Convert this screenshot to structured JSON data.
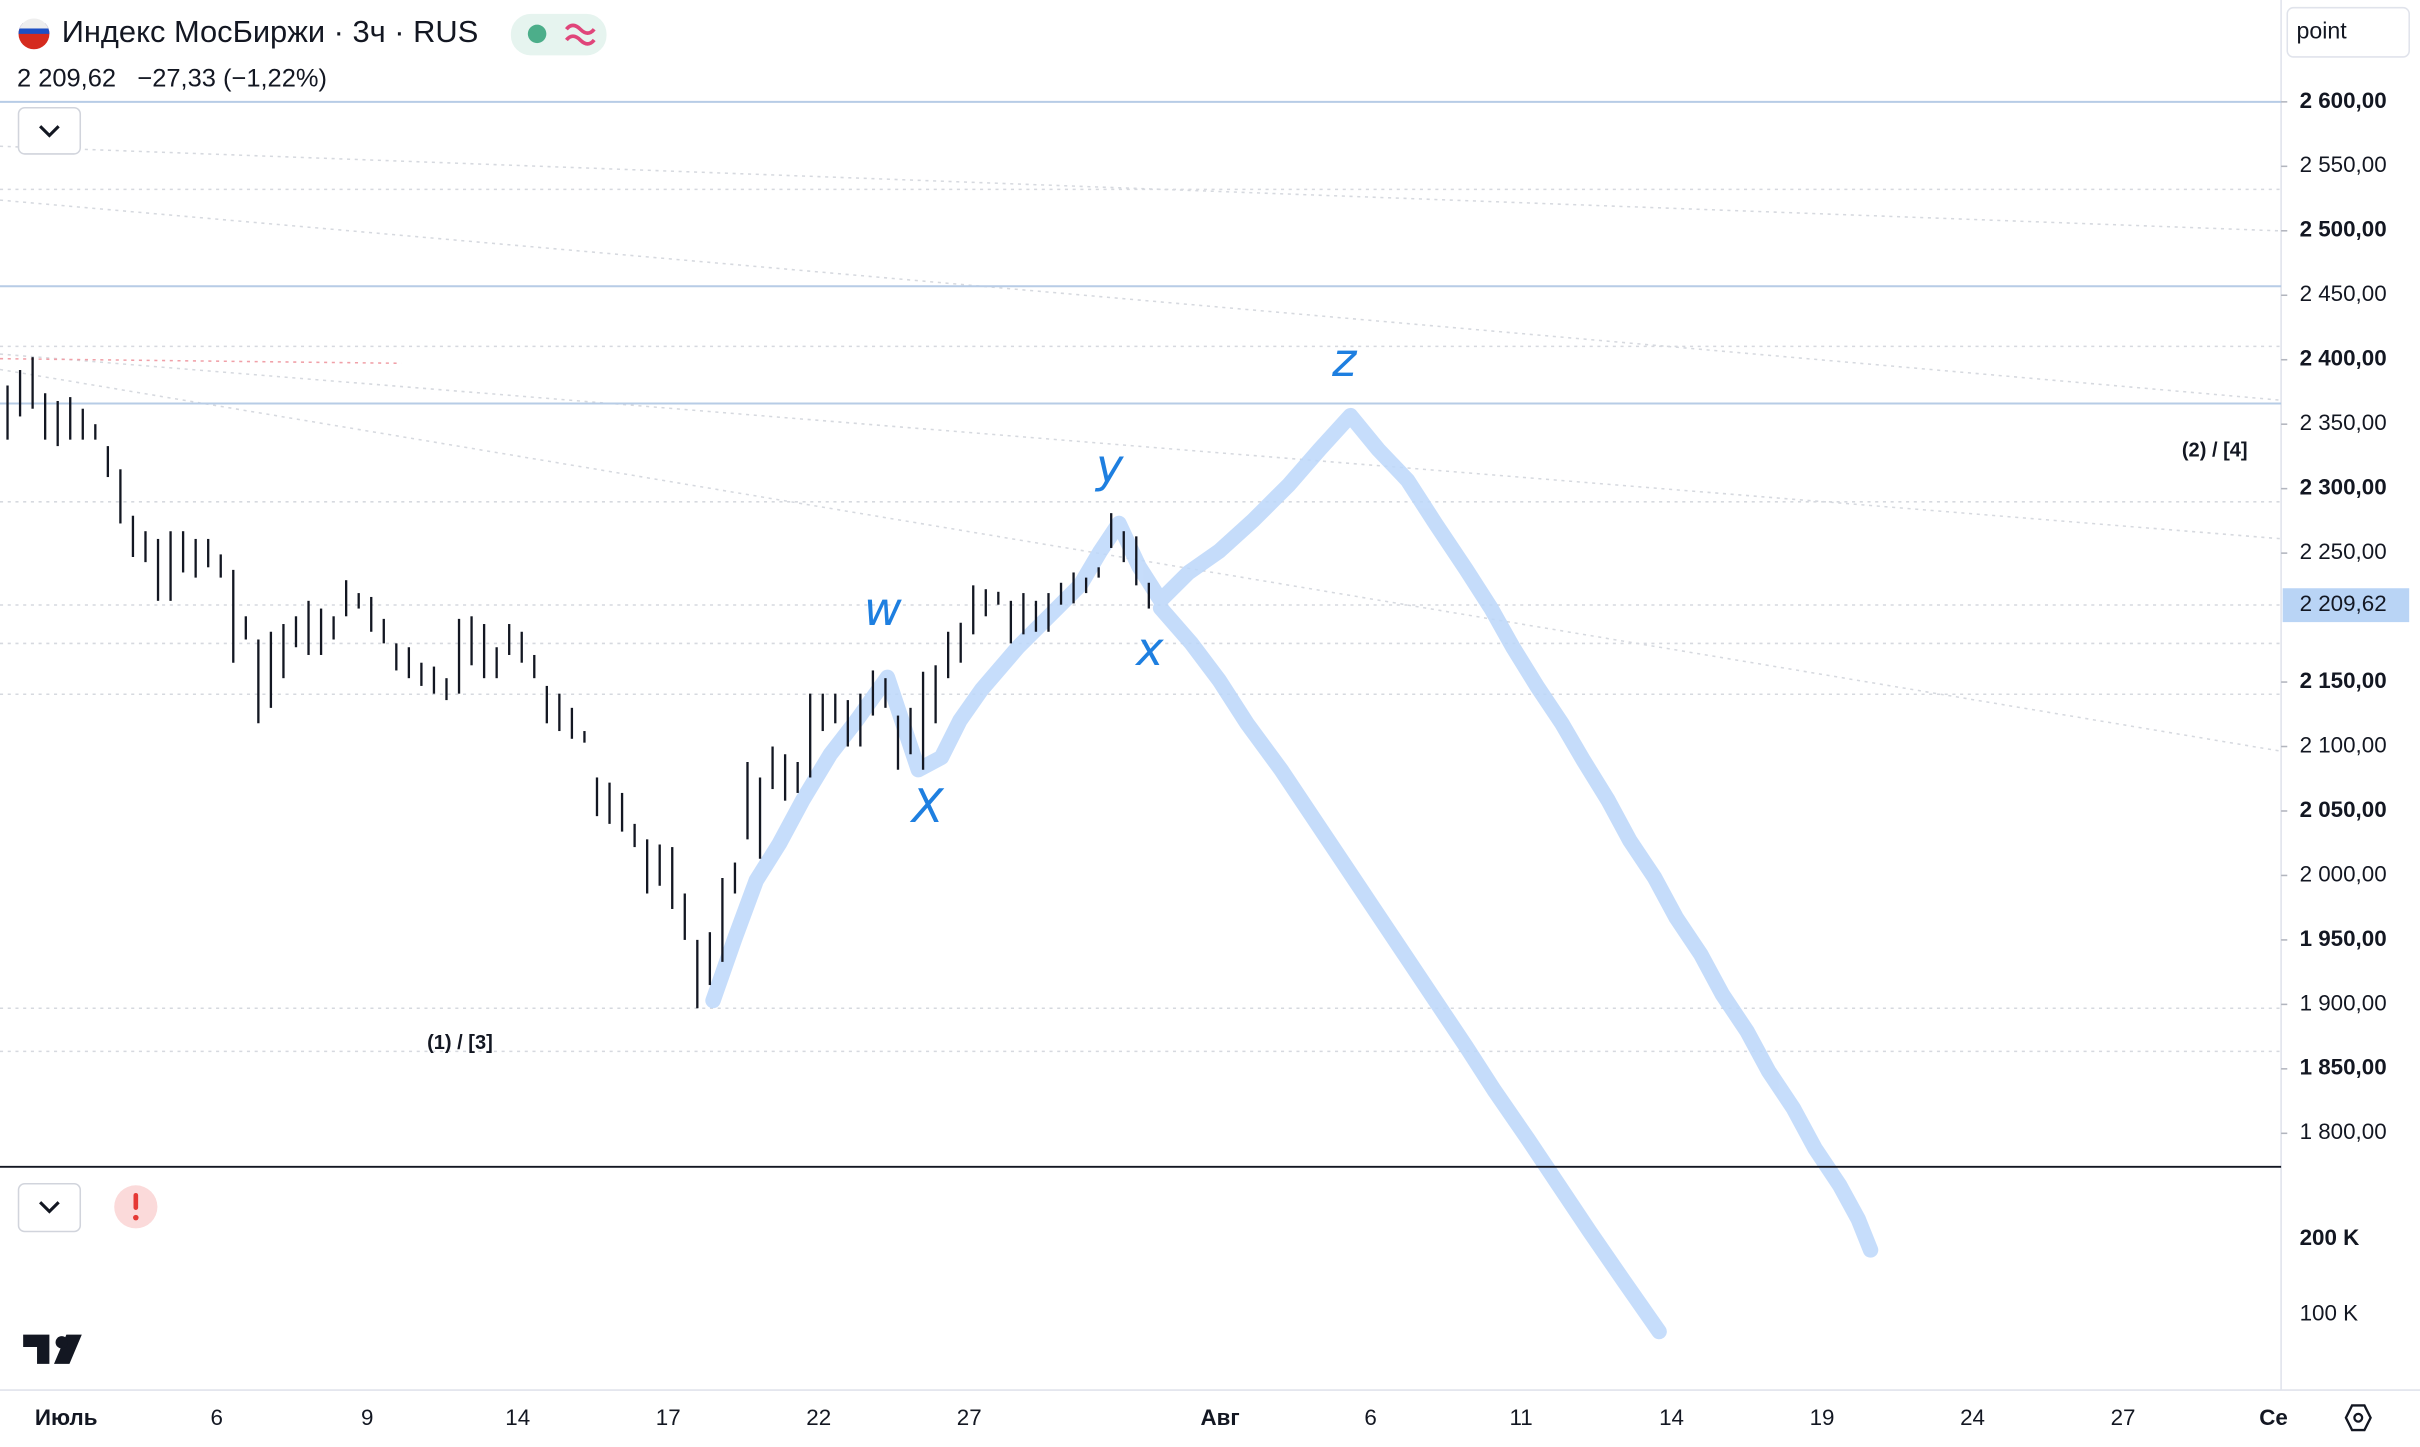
{
  "header": {
    "title": "Индекс МосБиржи · 3ч · RUS",
    "change": "−27,33 (−1,22%)",
    "scale_mode": "point"
  },
  "chart_data": {
    "type": "range_bar",
    "color": "#131722",
    "series": [
      {
        "x": [
          -1.17,
          -0.92,
          -0.67,
          -0.42,
          -0.17,
          0.08,
          0.33,
          0.58,
          0.83,
          1.08,
          1.33,
          1.58,
          1.83,
          2.08,
          2.33,
          2.58,
          2.83,
          3.08,
          3.33,
          3.58,
          3.83,
          4.08,
          4.33,
          4.58,
          4.83,
          5.08,
          5.33,
          5.58,
          5.83,
          6.08,
          6.33,
          6.58,
          6.83,
          7.08,
          7.33,
          7.58,
          7.83,
          8.08,
          8.33,
          8.58,
          8.83,
          9.08,
          9.33,
          9.58,
          9.83,
          10.08,
          10.33,
          10.58,
          10.83,
          11.08,
          11.33,
          11.58,
          11.83,
          12.08,
          12.33,
          12.58,
          12.83,
          13.08,
          13.33,
          13.58,
          13.83,
          14.08,
          14.33,
          14.58,
          14.83,
          15.08,
          15.33,
          15.58,
          15.83,
          16.08,
          16.33,
          16.58,
          16.83,
          17.08,
          17.33,
          17.58,
          17.83,
          18.08,
          18.33,
          18.58,
          18.83,
          19.08,
          19.33,
          19.58,
          19.83,
          20.08,
          20.33,
          20.58,
          20.83,
          21.08,
          21.33,
          21.58
        ],
        "high": [
          2380,
          2392,
          2402,
          2374,
          2368,
          2371,
          2362,
          2350,
          2333,
          2315,
          2279,
          2267,
          2261,
          2267,
          2267,
          2261,
          2261,
          2249,
          2237,
          2201,
          2183,
          2189,
          2195,
          2201,
          2213,
          2207,
          2201,
          2229,
          2219,
          2216,
          2199,
          2180,
          2177,
          2165,
          2162,
          2153,
          2199,
          2201,
          2195,
          2177,
          2195,
          2189,
          2171,
          2147,
          2141,
          2130,
          2112,
          2076,
          2072,
          2064,
          2040,
          2028,
          2024,
          2022,
          1986,
          1950,
          1956,
          1998,
          2010,
          2088,
          2076,
          2100,
          2094,
          2088,
          2141,
          2141,
          2141,
          2136,
          2141,
          2159,
          2153,
          2124,
          2130,
          2158,
          2163,
          2189,
          2196,
          2225,
          2222,
          2220,
          2213,
          2219,
          2213,
          2219,
          2227,
          2235,
          2231,
          2239,
          2281,
          2267,
          2263,
          2227
        ],
        "low": [
          2338,
          2356,
          2362,
          2338,
          2333,
          2338,
          2338,
          2338,
          2309,
          2273,
          2247,
          2243,
          2213,
          2213,
          2235,
          2231,
          2239,
          2231,
          2165,
          2183,
          2118,
          2130,
          2153,
          2177,
          2171,
          2171,
          2183,
          2201,
          2207,
          2189,
          2180,
          2159,
          2153,
          2147,
          2141,
          2136,
          2141,
          2163,
          2153,
          2153,
          2171,
          2165,
          2153,
          2118,
          2112,
          2106,
          2103,
          2046,
          2040,
          2034,
          2022,
          1986,
          1992,
          1974,
          1950,
          1897,
          1915,
          1933,
          1986,
          2028,
          2013,
          2067,
          2058,
          2064,
          2076,
          2112,
          2118,
          2100,
          2100,
          2124,
          2130,
          2082,
          2094,
          2082,
          2118,
          2153,
          2165,
          2187,
          2201,
          2210,
          2180,
          2187,
          2189,
          2189,
          2210,
          2211,
          2219,
          2231,
          2254,
          2243,
          2225,
          2207
        ]
      }
    ],
    "xlim": [
      -1.32,
      44.15
    ],
    "xticks": [
      {
        "value": 0,
        "label": "Июль"
      },
      {
        "value": 3,
        "label": "6"
      },
      {
        "value": 6,
        "label": "9"
      },
      {
        "value": 9,
        "label": "14"
      },
      {
        "value": 12,
        "label": "17"
      },
      {
        "value": 15,
        "label": "22"
      },
      {
        "value": 18,
        "label": "27"
      },
      {
        "value": 23,
        "label": "Авг"
      },
      {
        "value": 26,
        "label": "6"
      },
      {
        "value": 29,
        "label": "11"
      },
      {
        "value": 32,
        "label": "14"
      },
      {
        "value": 35,
        "label": "19"
      },
      {
        "value": 38,
        "label": "24"
      },
      {
        "value": 41,
        "label": "27"
      },
      {
        "value": 44,
        "label": "Се"
      }
    ],
    "ylim": [
      1774,
      2679
    ],
    "yticks": [
      {
        "value": 2600,
        "label": "2 600,00"
      },
      {
        "value": 2550,
        "label": "2 550,00"
      },
      {
        "value": 2500,
        "label": "2 500,00"
      },
      {
        "value": 2450,
        "label": "2 450,00"
      },
      {
        "value": 2400,
        "label": "2 400,00"
      },
      {
        "value": 2350,
        "label": "2 350,00"
      },
      {
        "value": 2300,
        "label": "2 300,00"
      },
      {
        "value": 2250,
        "label": "2 250,00"
      },
      {
        "value": 2150,
        "label": "2 150,00"
      },
      {
        "value": 2100,
        "label": "2 100,00"
      },
      {
        "value": 2050,
        "label": "2 050,00"
      },
      {
        "value": 2000,
        "label": "2 000,00"
      },
      {
        "value": 1950,
        "label": "1 950,00"
      },
      {
        "value": 1900,
        "label": "1 900,00"
      },
      {
        "value": 1850,
        "label": "1 850,00"
      },
      {
        "value": 1800,
        "label": "1 800,00"
      }
    ],
    "last": {
      "value": 2209.62,
      "label": "2 209,62"
    },
    "levels": [
      2600,
      2457,
      2366
    ],
    "level_color": "#b7cce6",
    "annotations": [
      {
        "text": "(1) / [3]"
      },
      {
        "text": "(2) / [4]"
      }
    ],
    "wave_labels": [
      "w",
      "X",
      "y",
      "x",
      "z"
    ],
    "volume_ylim": [
      0,
      296000
    ],
    "volume_ticks": [
      {
        "value": 200000,
        "label": "200 K"
      },
      {
        "value": 100000,
        "label": "100 K"
      }
    ]
  }
}
